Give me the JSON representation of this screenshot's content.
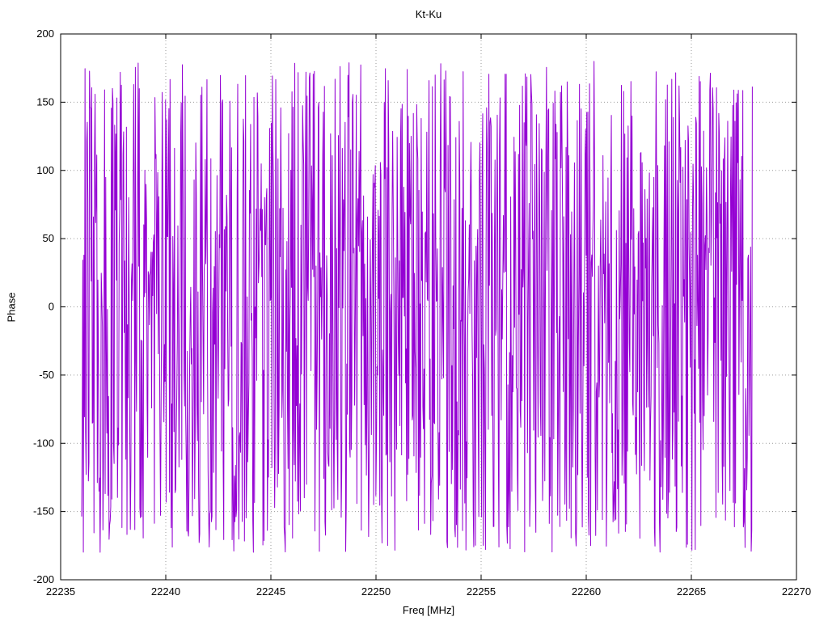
{
  "chart_data": {
    "type": "line",
    "title": "Kt-Ku",
    "xlabel": "Freq [MHz]",
    "ylabel": "Phase",
    "xlim": [
      22235,
      22270
    ],
    "ylim": [
      -200,
      200
    ],
    "x_ticks": [
      22235,
      22240,
      22245,
      22250,
      22255,
      22260,
      22265,
      22270
    ],
    "y_ticks": [
      -200,
      -150,
      -100,
      -50,
      0,
      50,
      100,
      150,
      200
    ],
    "grid": "dotted",
    "legend": "none",
    "series": [
      {
        "name": "phase",
        "color": "#9400d3",
        "behavior": "wrapped-phase-noise",
        "x_start": 22236.0,
        "x_end": 22267.9,
        "num_points": 1200,
        "y_min": -180,
        "y_max": 180,
        "max_step_deg": 155,
        "seed": 1234
      }
    ]
  }
}
